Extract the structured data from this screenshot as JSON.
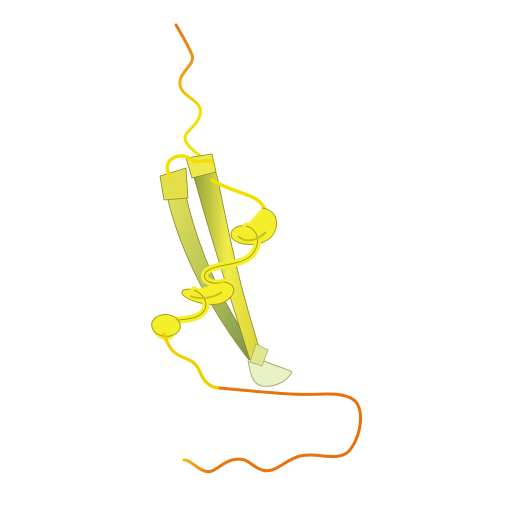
{
  "scene": {
    "background": "#ffffff",
    "representation": "ribbon",
    "elements": [
      "n-terminal-coil",
      "beta-strand-1",
      "beta-strand-2",
      "hairpin-turn",
      "alpha-helix",
      "c-terminal-coil"
    ]
  },
  "colors": {
    "coil_orange": "#e8760f",
    "coil_yellow": "#f2e000",
    "strand_yellow": "#e6e45a",
    "strand_shadow": "#6f8a4f",
    "helix_yellow": "#f4ef2a",
    "helix_dark": "#a8a010",
    "turn_pale": "#e9f2c4"
  }
}
